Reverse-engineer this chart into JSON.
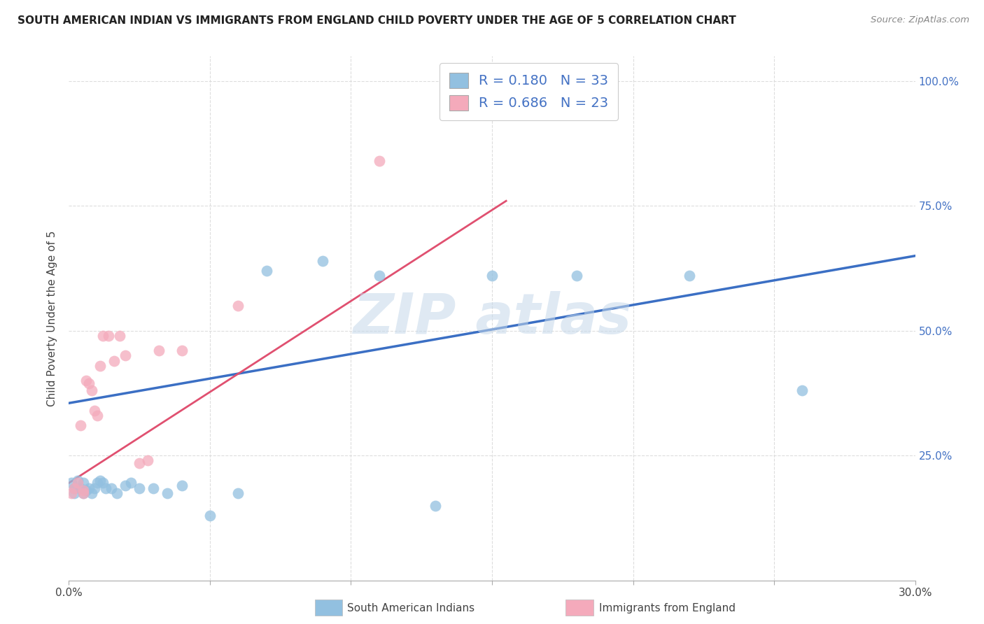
{
  "title": "SOUTH AMERICAN INDIAN VS IMMIGRANTS FROM ENGLAND CHILD POVERTY UNDER THE AGE OF 5 CORRELATION CHART",
  "source": "Source: ZipAtlas.com",
  "ylabel": "Child Poverty Under the Age of 5",
  "xlim": [
    0.0,
    0.3
  ],
  "ylim": [
    0.0,
    1.05
  ],
  "xtick_positions": [
    0.0,
    0.05,
    0.1,
    0.15,
    0.2,
    0.25,
    0.3
  ],
  "xticklabels": [
    "0.0%",
    "",
    "",
    "",
    "",
    "",
    "30.0%"
  ],
  "ytick_positions": [
    0.0,
    0.25,
    0.5,
    0.75,
    1.0
  ],
  "right_yticklabels": [
    "",
    "25.0%",
    "50.0%",
    "75.0%",
    "100.0%"
  ],
  "blue_R": 0.18,
  "blue_N": 33,
  "pink_R": 0.686,
  "pink_N": 23,
  "blue_color": "#92C0E0",
  "pink_color": "#F4AABB",
  "blue_line_color": "#3B6FC4",
  "pink_line_color": "#E05070",
  "legend_label_color": "#4472C4",
  "title_color": "#222222",
  "source_color": "#888888",
  "ylabel_color": "#444444",
  "xtick_color": "#444444",
  "grid_color": "#DDDDDD",
  "blue_x": [
    0.001,
    0.002,
    0.002,
    0.003,
    0.004,
    0.005,
    0.005,
    0.006,
    0.007,
    0.008,
    0.009,
    0.01,
    0.011,
    0.012,
    0.013,
    0.015,
    0.017,
    0.02,
    0.022,
    0.025,
    0.03,
    0.035,
    0.04,
    0.05,
    0.06,
    0.07,
    0.09,
    0.11,
    0.13,
    0.15,
    0.18,
    0.22,
    0.26
  ],
  "blue_y": [
    0.195,
    0.185,
    0.175,
    0.2,
    0.185,
    0.175,
    0.195,
    0.18,
    0.185,
    0.175,
    0.185,
    0.195,
    0.2,
    0.195,
    0.185,
    0.185,
    0.175,
    0.19,
    0.195,
    0.185,
    0.185,
    0.175,
    0.19,
    0.13,
    0.175,
    0.62,
    0.64,
    0.61,
    0.15,
    0.61,
    0.61,
    0.61,
    0.38
  ],
  "pink_x": [
    0.001,
    0.002,
    0.003,
    0.004,
    0.005,
    0.005,
    0.006,
    0.007,
    0.008,
    0.009,
    0.01,
    0.011,
    0.012,
    0.014,
    0.016,
    0.018,
    0.02,
    0.025,
    0.028,
    0.032,
    0.04,
    0.06,
    0.11
  ],
  "pink_y": [
    0.175,
    0.185,
    0.195,
    0.31,
    0.18,
    0.175,
    0.4,
    0.395,
    0.38,
    0.34,
    0.33,
    0.43,
    0.49,
    0.49,
    0.44,
    0.49,
    0.45,
    0.235,
    0.24,
    0.46,
    0.46,
    0.55,
    0.84
  ],
  "blue_line_x": [
    0.0,
    0.3
  ],
  "blue_line_y": [
    0.355,
    0.65
  ],
  "pink_line_x": [
    0.0,
    0.155
  ],
  "pink_line_y": [
    0.195,
    0.76
  ]
}
